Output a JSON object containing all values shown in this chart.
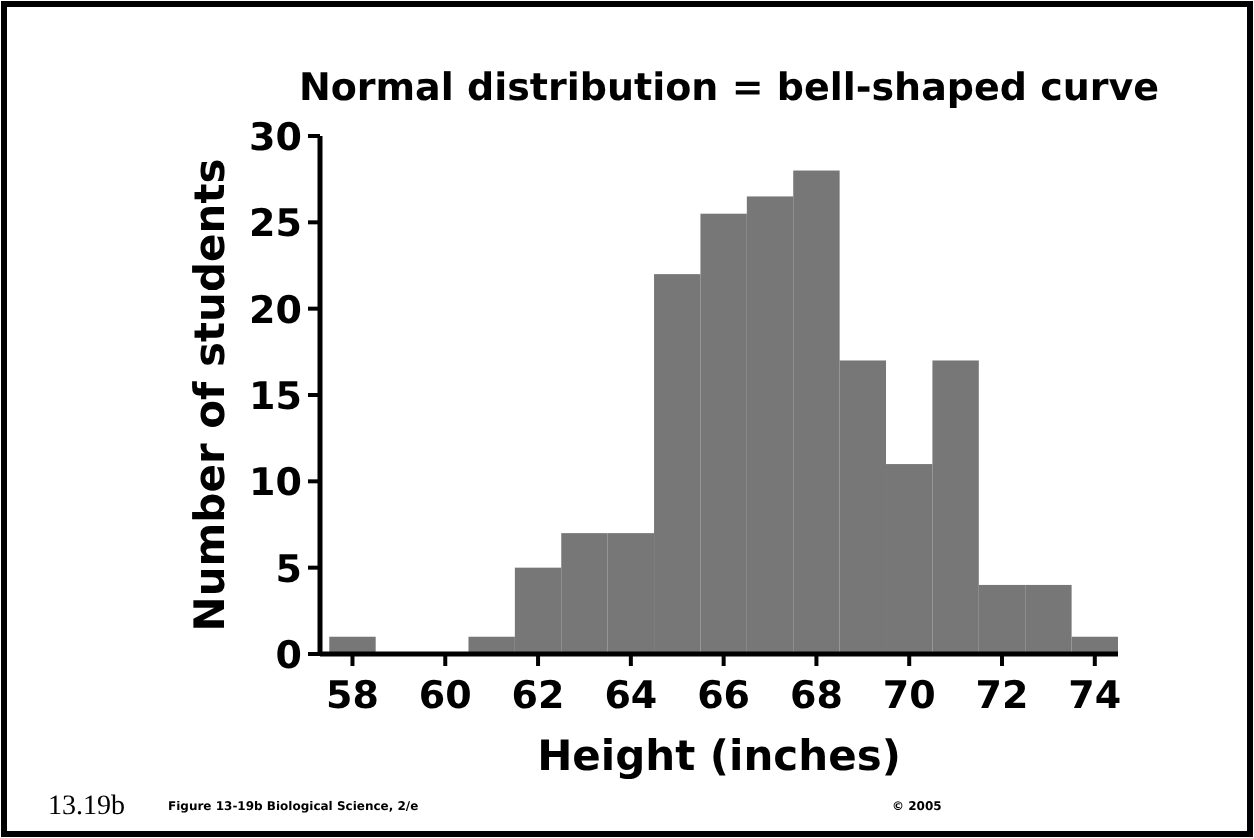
{
  "chart_data": {
    "type": "histogram",
    "title": "Normal distribution = bell-shaped curve",
    "xlabel": "Height (inches)",
    "ylabel": "Number of students",
    "bins": [
      57.5,
      58.5,
      59.5,
      60.5,
      61.5,
      62.5,
      63.5,
      64.5,
      65.5,
      66.5,
      67.5,
      68.5,
      69.5,
      70.5,
      71.5,
      72.5,
      73.5,
      74.5
    ],
    "values": [
      1,
      0,
      0,
      1,
      5,
      7,
      7,
      22,
      25.5,
      26.5,
      28,
      17,
      11,
      17,
      4,
      4,
      1
    ],
    "color": "#777777",
    "xlim": [
      57.3,
      74.5
    ],
    "ylim": [
      0,
      30
    ],
    "xticks": [
      58,
      60,
      62,
      64,
      66,
      68,
      70,
      72,
      74
    ],
    "yticks": [
      0,
      5,
      10,
      15,
      20,
      25,
      30
    ],
    "grid": false,
    "annotations": [
      "13.19b",
      "Figure 13-19b  Biological Science, 2/e",
      "© 2005"
    ]
  }
}
